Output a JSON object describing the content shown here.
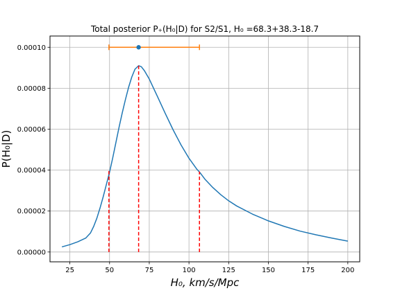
{
  "chart_data": {
    "type": "line",
    "title": "Total posterior P₊(H₀|D) for S2/S1, H₀ =68.3+38.3-18.7",
    "xlabel": "H₀, km/s/Mpc",
    "ylabel": "P(H₀|D)",
    "xlim": [
      12.5,
      207.5
    ],
    "ylim": [
      -4.8e-06,
      0.0001055
    ],
    "xticks": [
      25,
      50,
      75,
      100,
      125,
      150,
      175,
      200
    ],
    "xtick_labels": [
      "25",
      "50",
      "75",
      "100",
      "125",
      "150",
      "175",
      "200"
    ],
    "yticks": [
      0.0,
      2e-05,
      4e-05,
      6e-05,
      8e-05,
      0.0001
    ],
    "ytick_labels": [
      "0.00000",
      "0.00002",
      "0.00004",
      "0.00006",
      "0.00008",
      "0.00010"
    ],
    "grid": true,
    "series": [
      {
        "color": "#1f77b4",
        "x": [
          20,
          25,
          30,
          35,
          38,
          40,
          42,
          44,
          46,
          48,
          50,
          52,
          54,
          56,
          58,
          60,
          62,
          64,
          66,
          68.3,
          70,
          72,
          75,
          78,
          80,
          85,
          90,
          95,
          100,
          105,
          107,
          110,
          115,
          120,
          125,
          130,
          140,
          150,
          160,
          170,
          180,
          190,
          200
        ],
        "y": [
          2.5e-06,
          3.6e-06,
          5e-06,
          6.8e-06,
          9.3e-06,
          1.25e-05,
          1.65e-05,
          2.15e-05,
          2.7e-05,
          3.3e-05,
          3.9e-05,
          4.6e-05,
          5.35e-05,
          6.1e-05,
          6.8e-05,
          7.45e-05,
          8.05e-05,
          8.55e-05,
          8.93e-05,
          9.1e-05,
          9.05e-05,
          8.85e-05,
          8.45e-05,
          7.95e-05,
          7.62e-05,
          6.78e-05,
          5.97e-05,
          5.23e-05,
          4.58e-05,
          4.04e-05,
          3.87e-05,
          3.56e-05,
          3.15e-05,
          2.8e-05,
          2.5e-05,
          2.25e-05,
          1.85e-05,
          1.52e-05,
          1.25e-05,
          1.02e-05,
          8.4e-06,
          6.8e-06,
          5.3e-06
        ]
      }
    ],
    "vlines": [
      {
        "x": 49.6,
        "ymax": 3.97e-05
      },
      {
        "x": 68.3,
        "ymax": 9.1e-05
      },
      {
        "x": 106.6,
        "ymax": 3.93e-05
      }
    ],
    "errorbar": {
      "x": 68.3,
      "y": 0.0001,
      "xmin": 49.6,
      "xmax": 106.6,
      "marker_color": "#1f77b4",
      "bar_color": "#ff7f0e"
    },
    "colors": {
      "curve": "#1f77b4",
      "errorbar": "#ff7f0e",
      "vlines": "#ff0000",
      "grid": "#b0b0b0"
    }
  }
}
